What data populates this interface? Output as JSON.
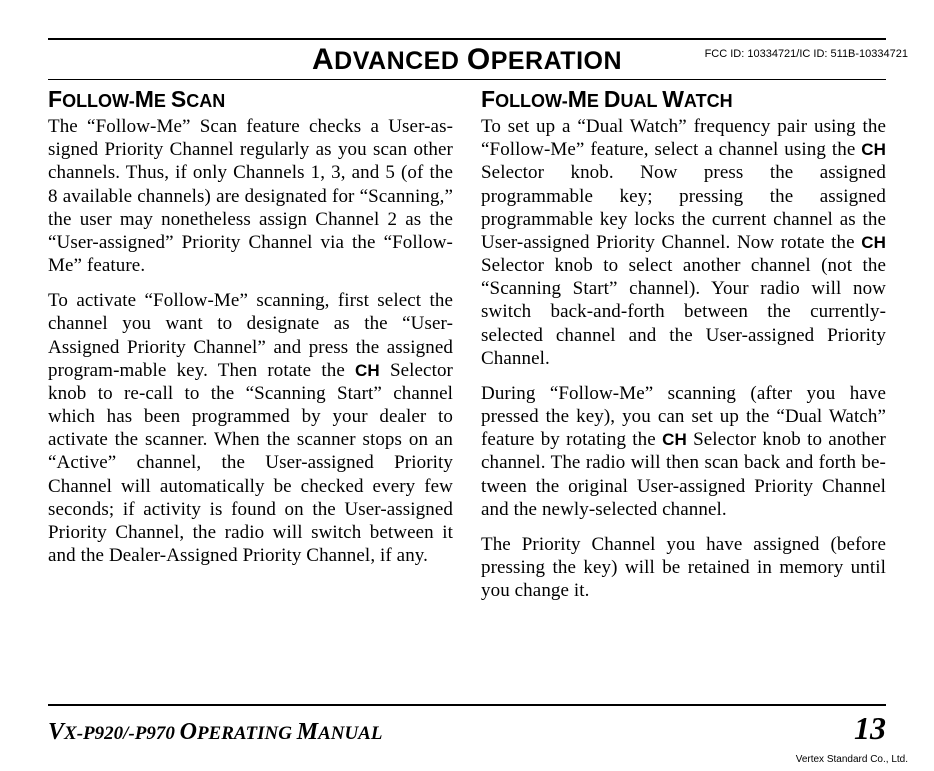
{
  "header": {
    "fcc": "FCC ID: 10334721/IC ID: 511B-10334721",
    "chapter_lead1": "A",
    "chapter_word1": "DVANCED",
    "chapter_space": " ",
    "chapter_lead2": "O",
    "chapter_word2": "PERATION"
  },
  "left": {
    "h_lead1": "F",
    "h_w1": "OLLOW",
    "h_dash": "-",
    "h_lead2": "M",
    "h_w2": "E",
    "h_sp": " ",
    "h_lead3": "S",
    "h_w3": "CAN",
    "p1a": "The “Follow-Me” Scan feature checks a User-as-signed Priority Channel regularly as you scan  other channels. Thus, if only Channels 1, 3, and 5 (of the 8 available channels) are designated for “Scanning,” the user may nonetheless assign Channel 2 as the “User-assigned” Priority Channel via the “Follow-Me” feature.",
    "p2a": "To activate “Follow-Me” scanning, first select the channel you want to designate as the “User-Assigned Priority Channel” and press the assigned program-mable key. Then rotate the ",
    "p2knob": "CH",
    "p2b": " Selector knob to re-call to the “Scanning Start” channel which has been programmed by your dealer to activate the scanner. When the scanner stops on an “Active” channel, the User-assigned Priority Channel will automatically be checked every few seconds; if activity is found on the User-assigned Priority Channel, the radio will switch between it and the Dealer-Assigned Priority Channel, if any."
  },
  "right": {
    "h_lead1": "F",
    "h_w1": "OLLOW",
    "h_dash": "-",
    "h_lead2": "M",
    "h_w2": "E",
    "h_sp": " ",
    "h_lead3": "D",
    "h_w3": "UAL",
    "h_sp2": " ",
    "h_lead4": "W",
    "h_w4": "ATCH",
    "p1a": "To set up a “Dual Watch” frequency pair using the “Follow-Me” feature, select a channel using the ",
    "p1knob": "CH",
    "p1b": " Selector knob. Now press the assigned programmable key; pressing the assigned programmable key locks the current channel as the User-assigned Priority Channel. Now rotate the ",
    "p1knob2": "CH",
    "p1c": " Selector knob to select another channel (not the “Scanning Start” channel). Your radio will now switch back-and-forth between the currently-selected channel and the User-assigned Priority Channel.",
    "p2a": "During “Follow-Me” scanning (after you have pressed the key), you can set up the “Dual Watch” feature by rotating the ",
    "p2knob": "CH",
    "p2b": " Selector knob to another channel. The radio will then scan back and forth be-tween the original User-assigned Priority Channel and the newly-selected channel.",
    "p3": "The Priority Channel you have assigned (before pressing the key) will be retained in memory until you change it."
  },
  "footer": {
    "m_l1": "V",
    "m_w1": "X-P920/-P970 ",
    "m_l2": "O",
    "m_w2": "PERATING ",
    "m_l3": "M",
    "m_w3": "ANUAL",
    "page": "13",
    "vertex": "Vertex Standard Co., Ltd."
  }
}
